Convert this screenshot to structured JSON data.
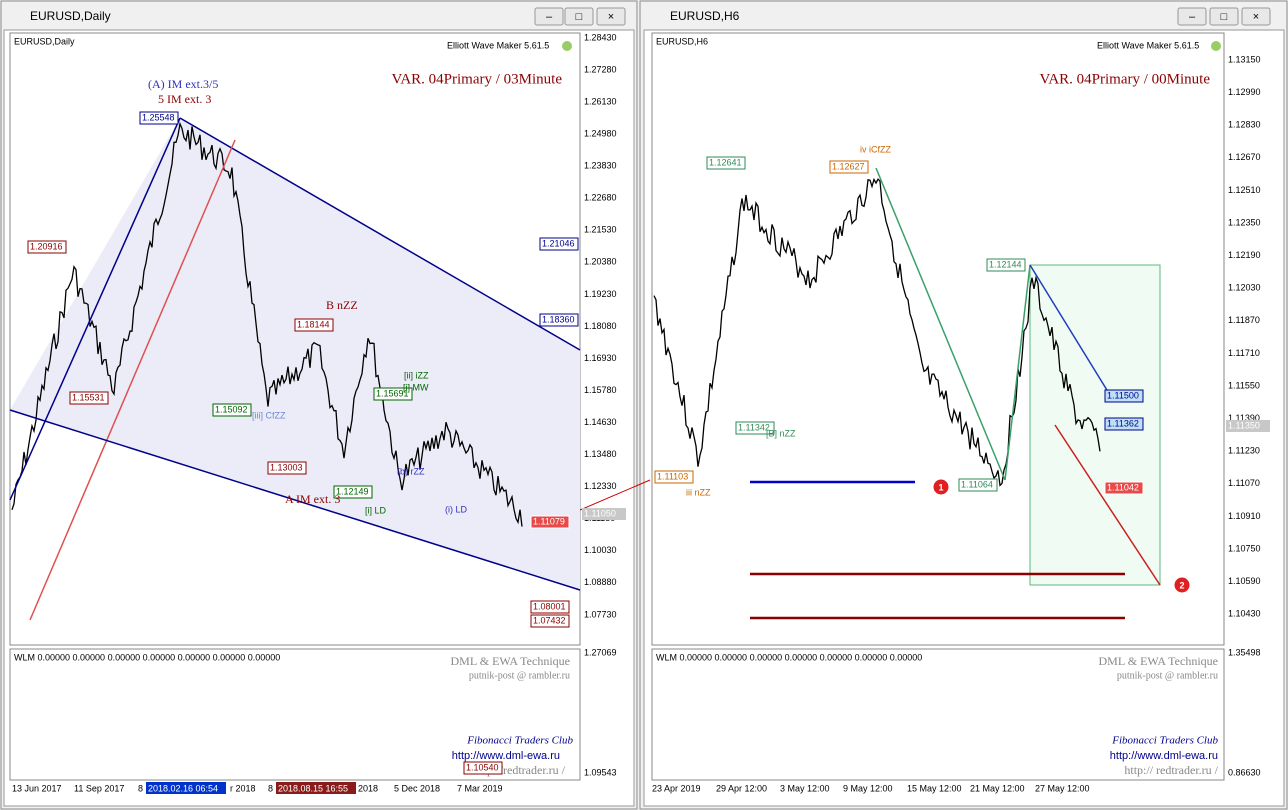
{
  "left": {
    "title": "EURUSD,Daily",
    "chart_label": "EURUSD,Daily",
    "brand": "Elliott Wave Maker 5.61.5",
    "variant": "VAR. 04Primary / 03Minute",
    "price_axis": [
      "1.28430",
      "1.27280",
      "1.26130",
      "1.24980",
      "1.23830",
      "1.22680",
      "1.21530",
      "1.20380",
      "1.19230",
      "1.18080",
      "1.16930",
      "1.15780",
      "1.14630",
      "1.13480",
      "1.12330",
      "1.11180",
      "1.10030",
      "1.08880",
      "1.07730"
    ],
    "current_price": "1.11050",
    "boxes": [
      "1.25548",
      "1.20916",
      "1.15531",
      "1.15092",
      "1.13003",
      "1.12149",
      "1.15691",
      "1.18144",
      "1.21046",
      "1.18360",
      "1.11079",
      "1.08001",
      "1.07432"
    ],
    "annotations": [
      "(A) IM ext.3/5",
      "5 IM ext. 3",
      "B nZZ",
      "A IM ext. 3",
      "[ii] iZZ",
      "[i] MW",
      "[i] LD",
      "(i) LD",
      "(b) rZZ",
      "[iii] CfZZ"
    ],
    "indicator": {
      "label": "WLM 0.00000 0.00000 0.00000 0.00000 0.00000 0.00000 0.00000",
      "axis": [
        "1.27069",
        "1.09543"
      ],
      "technique": "DML & EWA Technique",
      "email": "putnik-post @ rambler.ru",
      "club": "Fibonacci    Traders    Club",
      "site1": "http://www.dml-ewa.ru",
      "site2": "http://redtrader.ru /",
      "box": "1.10540"
    },
    "dates": [
      "13 Jun 2017",
      "11 Sep 2017",
      "8",
      "2018.02.16 06:54",
      "r 2018",
      "8",
      "2018.08.15 16:55",
      "2018",
      "5 Dec 2018",
      "7 Mar 2019"
    ]
  },
  "right": {
    "title": "EURUSD,H6",
    "chart_label": "EURUSD,H6",
    "brand": "Elliott Wave Maker 5.61.5",
    "variant": "VAR. 04Primary / 00Minute",
    "price_axis": [
      "1.13150",
      "1.12990",
      "1.12830",
      "1.12670",
      "1.12510",
      "1.12350",
      "1.12190",
      "1.12030",
      "1.11870",
      "1.11710",
      "1.11550",
      "1.11390",
      "1.11230",
      "1.11070",
      "1.10910",
      "1.10750",
      "1.10590",
      "1.10430"
    ],
    "current_price": "1.11350",
    "boxes": [
      "1.12641",
      "1.12627",
      "1.12144",
      "1.11342",
      "1.11103",
      "1.11064",
      "1.11500",
      "1.11362",
      "1.11042"
    ],
    "annotations": [
      "iv iCfZZ",
      "[B] nZZ",
      "iii nZZ"
    ],
    "markers": [
      "1",
      "2"
    ],
    "indicator": {
      "label": "WLM 0.00000 0.00000 0.00000 0.00000 0.00000 0.00000 0.00000",
      "axis": [
        "1.35498",
        "0.86630"
      ],
      "technique": "DML & EWA Technique",
      "email": "putnik-post @ rambler.ru",
      "club": "Fibonacci    Traders    Club",
      "site1": "http://www.dml-ewa.ru",
      "site2": "http://  redtrader.ru /"
    },
    "dates": [
      "23 Apr 2019",
      "29 Apr 12:00",
      "3 May 12:00",
      "9 May 12:00",
      "15 May 12:00",
      "21 May 12:00",
      "27 May 12:00"
    ]
  }
}
